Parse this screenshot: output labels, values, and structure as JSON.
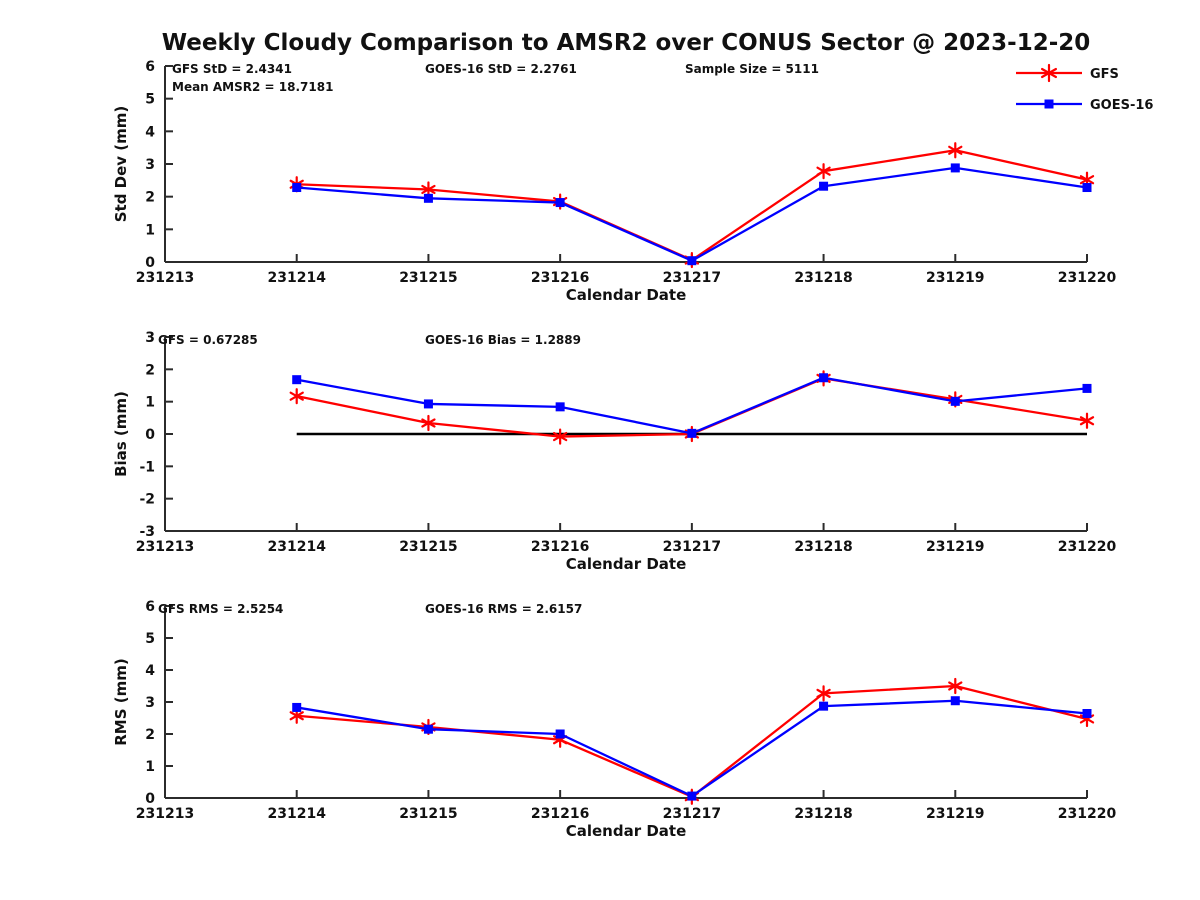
{
  "figure": {
    "title": "Weekly Cloudy Comparison to AMSR2 over CONUS Sector @ 2023-12-20",
    "background_color": "#ffffff",
    "text_color": "#111111",
    "axis_color": "#2b2b2b"
  },
  "legend": {
    "position": "top-right",
    "entries": [
      {
        "label": "GFS",
        "color": "#ff0000",
        "marker": "asterisk"
      },
      {
        "label": "GOES-16",
        "color": "#0000ff",
        "marker": "square"
      }
    ]
  },
  "chart_data": [
    {
      "type": "line",
      "name": "std-dev",
      "ylabel": "Std Dev (mm)",
      "xlabel": "Calendar Date",
      "ylim": [
        0,
        6
      ],
      "yticks": [
        0,
        1,
        2,
        3,
        4,
        5,
        6
      ],
      "xticks": [
        "231213",
        "231214",
        "231215",
        "231216",
        "231217",
        "231218",
        "231219",
        "231220"
      ],
      "categories": [
        "231214",
        "231215",
        "231216",
        "231217",
        "231218",
        "231219",
        "231220"
      ],
      "annotations": [
        "GFS StD = 2.4341",
        "GOES-16 StD = 2.2761",
        "Sample Size = 5111",
        "Mean AMSR2 = 18.7181"
      ],
      "grid": false,
      "zero_line": false,
      "series": [
        {
          "name": "GFS",
          "color": "#ff0000",
          "marker": "asterisk",
          "values": [
            2.38,
            2.22,
            1.85,
            0.06,
            2.78,
            3.42,
            2.52
          ]
        },
        {
          "name": "GOES-16",
          "color": "#0000ff",
          "marker": "square",
          "values": [
            2.28,
            1.95,
            1.82,
            0.04,
            2.32,
            2.88,
            2.28
          ]
        }
      ]
    },
    {
      "type": "line",
      "name": "bias",
      "ylabel": "Bias (mm)",
      "xlabel": "Calendar Date",
      "ylim": [
        -3,
        3
      ],
      "yticks": [
        3,
        2,
        1,
        0,
        -1,
        -2,
        -3
      ],
      "xticks": [
        "231213",
        "231214",
        "231215",
        "231216",
        "231217",
        "231218",
        "231219",
        "231220"
      ],
      "categories": [
        "231214",
        "231215",
        "231216",
        "231217",
        "231218",
        "231219",
        "231220"
      ],
      "annotations": [
        "GFS = 0.67285",
        "GOES-16 Bias  = 1.2889"
      ],
      "grid": false,
      "zero_line": true,
      "series": [
        {
          "name": "GFS",
          "color": "#ff0000",
          "marker": "asterisk",
          "values": [
            1.17,
            0.34,
            -0.08,
            0.0,
            1.72,
            1.07,
            0.41
          ]
        },
        {
          "name": "GOES-16",
          "color": "#0000ff",
          "marker": "square",
          "values": [
            1.68,
            0.93,
            0.84,
            0.02,
            1.74,
            1.01,
            1.41
          ]
        }
      ]
    },
    {
      "type": "line",
      "name": "rms",
      "ylabel": "RMS (mm)",
      "xlabel": "Calendar Date",
      "ylim": [
        0,
        6
      ],
      "yticks": [
        0,
        1,
        2,
        3,
        4,
        5,
        6
      ],
      "xticks": [
        "231213",
        "231214",
        "231215",
        "231216",
        "231217",
        "231218",
        "231219",
        "231220"
      ],
      "categories": [
        "231214",
        "231215",
        "231216",
        "231217",
        "231218",
        "231219",
        "231220"
      ],
      "annotations": [
        "GFS RMS = 2.5254",
        "GOES-16 RMS = 2.6157"
      ],
      "grid": false,
      "zero_line": false,
      "series": [
        {
          "name": "GFS",
          "color": "#ff0000",
          "marker": "asterisk",
          "values": [
            2.57,
            2.22,
            1.82,
            0.04,
            3.27,
            3.5,
            2.47
          ]
        },
        {
          "name": "GOES-16",
          "color": "#0000ff",
          "marker": "square",
          "values": [
            2.83,
            2.15,
            2.0,
            0.06,
            2.87,
            3.04,
            2.64
          ]
        }
      ]
    }
  ]
}
